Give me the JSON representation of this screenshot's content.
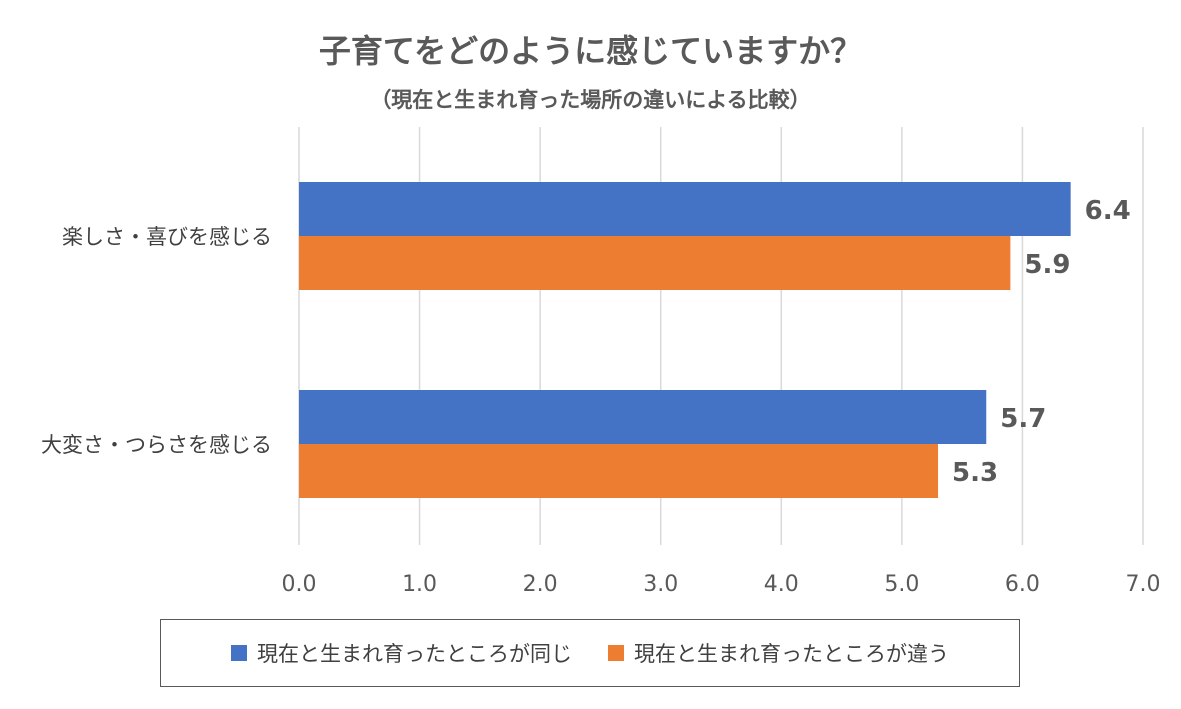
{
  "chart_data": {
    "type": "bar",
    "orientation": "horizontal",
    "title": "子育てをどのように感じていますか？",
    "subtitle": "（現在と生まれ育った場所の違いによる比較）",
    "categories": [
      "楽しさ・喜びを感じる",
      "大変さ・つらさを感じる"
    ],
    "series": [
      {
        "name": "現在と生まれ育ったところが同じ",
        "color": "#4472C4",
        "values": [
          6.4,
          5.7
        ],
        "labels": [
          "6.4",
          "5.7"
        ]
      },
      {
        "name": "現在と生まれ育ったところが違う",
        "color": "#ED7D31",
        "values": [
          5.9,
          5.3
        ],
        "labels": [
          "5.9",
          "5.3"
        ]
      }
    ],
    "xlim": [
      0,
      7
    ],
    "xticks": [
      "0.0",
      "1.0",
      "2.0",
      "3.0",
      "4.0",
      "5.0",
      "6.0",
      "7.0"
    ],
    "grid": true,
    "legend_position": "bottom"
  }
}
